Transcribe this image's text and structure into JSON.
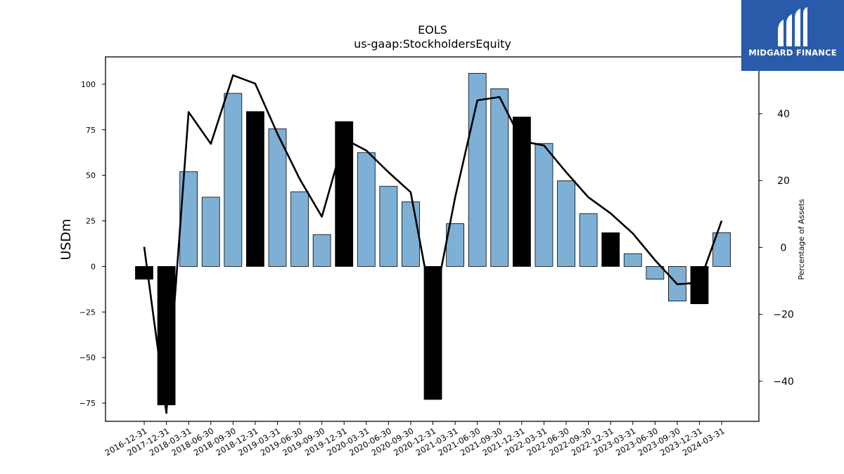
{
  "brand": {
    "name": "MIDGARD FINANCE",
    "bg_color": "#2a5bab"
  },
  "chart_data": {
    "type": "bar",
    "title": "EOLS",
    "subtitle": "us-gaap:StockholdersEquity",
    "ylabel": "USDm",
    "y2label": "Percentage of Assets",
    "ylim": [
      -85,
      115
    ],
    "y2lim": [
      -52,
      57
    ],
    "yticks": [
      -75,
      -50,
      -25,
      0,
      25,
      50,
      75,
      100
    ],
    "y2ticks": [
      -40,
      -20,
      0,
      20,
      40
    ],
    "ytick_labels": [
      "−75",
      "−50",
      "−25",
      "0",
      "25",
      "50",
      "75",
      "100"
    ],
    "y2tick_labels": [
      "−40",
      "−20",
      "0",
      "20",
      "40"
    ],
    "categories": [
      "2016-12-31",
      "2017-12-31",
      "2018-03-31",
      "2018-06-30",
      "2018-09-30",
      "2018-12-31",
      "2019-03-31",
      "2019-06-30",
      "2019-09-30",
      "2019-12-31",
      "2020-03-31",
      "2020-06-30",
      "2020-09-30",
      "2020-12-31",
      "2021-03-31",
      "2021-06-30",
      "2021-09-30",
      "2021-12-31",
      "2022-03-31",
      "2022-06-30",
      "2022-09-30",
      "2022-12-31",
      "2023-03-31",
      "2023-06-30",
      "2023-09-30",
      "2023-12-31",
      "2024-03-31"
    ],
    "bar_values": [
      -7,
      -76,
      52,
      38,
      95,
      85,
      75.5,
      41,
      17.5,
      79.5,
      62.5,
      44,
      35.5,
      -73,
      23.5,
      106,
      97.5,
      82,
      67.5,
      47,
      29,
      18.5,
      7,
      -7,
      -19,
      -20.5,
      18.5
    ],
    "annual": [
      true,
      true,
      false,
      false,
      false,
      true,
      false,
      false,
      false,
      true,
      false,
      false,
      false,
      true,
      false,
      false,
      false,
      true,
      false,
      false,
      false,
      true,
      false,
      false,
      false,
      true,
      false
    ],
    "line_values": [
      0.2,
      -49.5,
      40.5,
      31,
      51.5,
      49,
      34,
      20.5,
      9.2,
      32.5,
      29,
      22.5,
      16.5,
      -19,
      15,
      44,
      45,
      31.8,
      30.5,
      22.5,
      15,
      10.2,
      4.2,
      -3.8,
      -11,
      -10.5,
      8
    ],
    "bar_color_quarterly": "#7eb0d5",
    "bar_color_annual": "#000000",
    "line_color": "#000000",
    "grid": false
  }
}
